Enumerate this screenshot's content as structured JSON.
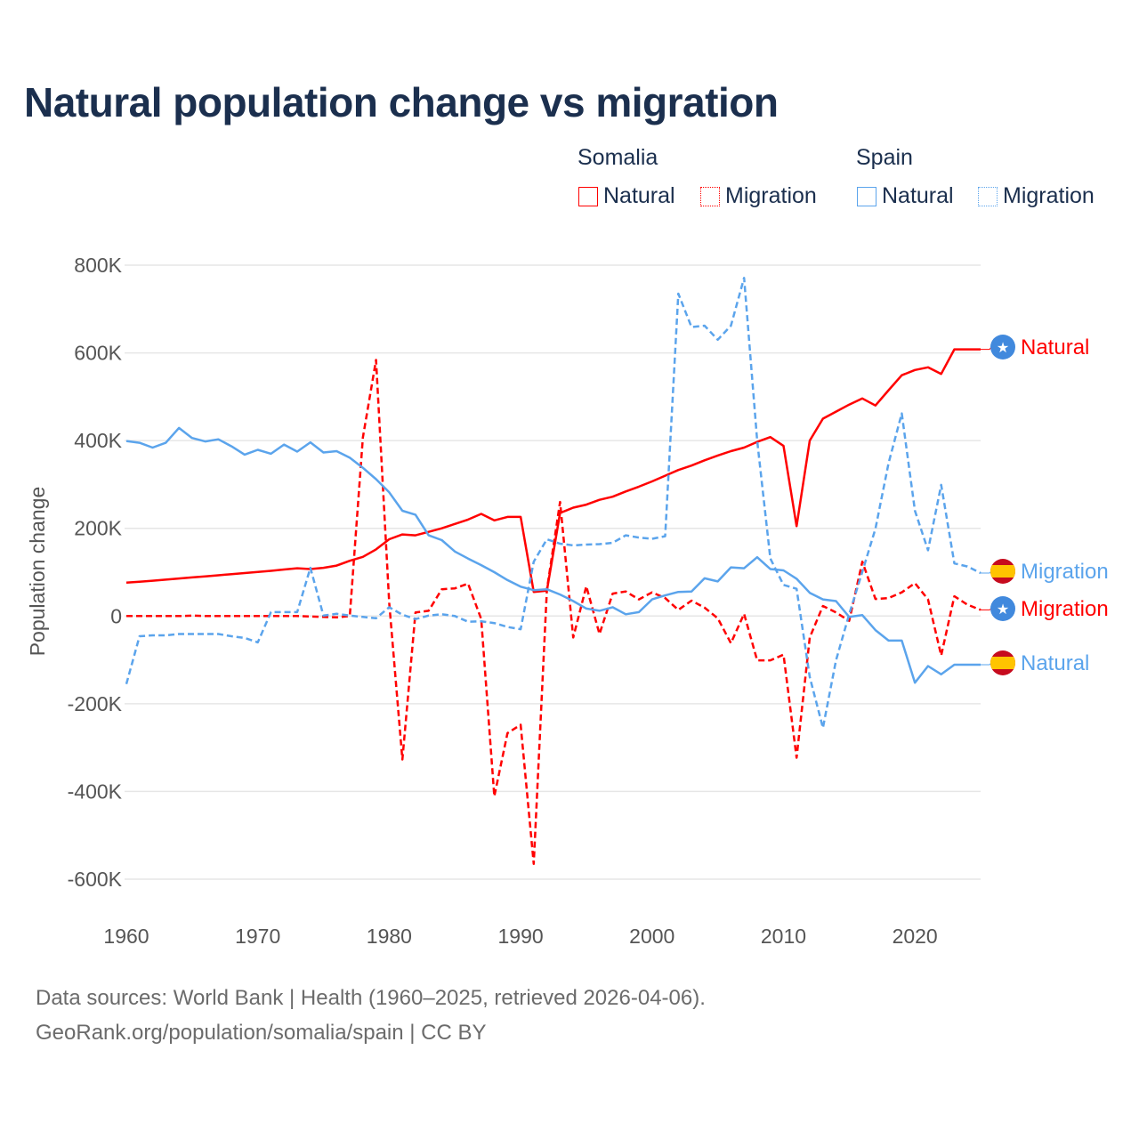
{
  "chart_data": {
    "type": "line",
    "title": "Natural population change vs migration",
    "xlabel": "",
    "ylabel": "Population change",
    "xlim": [
      1960,
      2025
    ],
    "ylim": [
      -600000,
      800000
    ],
    "x_ticks": [
      1960,
      1970,
      1980,
      1990,
      2000,
      2010,
      2020
    ],
    "x_tick_labels": [
      "1960",
      "1970",
      "1980",
      "1990",
      "2000",
      "2010",
      "2020"
    ],
    "y_ticks": [
      800000,
      600000,
      400000,
      200000,
      0,
      -200000,
      -400000,
      -600000
    ],
    "y_tick_labels": [
      "800K",
      "600K",
      "400K",
      "200K",
      "0",
      "-200K",
      "-400K",
      "-600K"
    ],
    "grid": true,
    "legend_placement": "top-right",
    "legend_groups": [
      {
        "country": "Somalia",
        "items": [
          "Natural",
          "Migration"
        ]
      },
      {
        "country": "Spain",
        "items": [
          "Natural",
          "Migration"
        ]
      }
    ],
    "x": [
      1960,
      1961,
      1962,
      1963,
      1964,
      1965,
      1966,
      1967,
      1968,
      1969,
      1970,
      1971,
      1972,
      1973,
      1974,
      1975,
      1976,
      1977,
      1978,
      1979,
      1980,
      1981,
      1982,
      1983,
      1984,
      1985,
      1986,
      1987,
      1988,
      1989,
      1990,
      1991,
      1992,
      1993,
      1994,
      1995,
      1996,
      1997,
      1998,
      1999,
      2000,
      2001,
      2002,
      2003,
      2004,
      2005,
      2006,
      2007,
      2008,
      2009,
      2010,
      2011,
      2012,
      2013,
      2014,
      2015,
      2016,
      2017,
      2018,
      2019,
      2020,
      2021,
      2022,
      2023,
      2024,
      2025
    ],
    "series": [
      {
        "name": "Natural",
        "country": "Somalia",
        "color": "#ff0000",
        "dash": false,
        "end_label": "Natural",
        "flag": "somalia-flag",
        "values": [
          76000,
          78000,
          80500,
          83000,
          85500,
          88000,
          90500,
          93000,
          95500,
          98000,
          100500,
          103000,
          106000,
          109000,
          107000,
          110000,
          115000,
          126000,
          135000,
          152000,
          175000,
          186000,
          184000,
          192000,
          200000,
          210000,
          220000,
          233000,
          218000,
          226000,
          226000,
          55000,
          58000,
          235000,
          247000,
          254000,
          265000,
          272000,
          284000,
          295000,
          307000,
          320000,
          333000,
          343000,
          355000,
          366000,
          376000,
          384000,
          397000,
          408000,
          388000,
          205000,
          400000,
          450000,
          466000,
          482000,
          496000,
          480000,
          515000,
          549000,
          561000,
          567000,
          552000,
          608000,
          608000,
          608000
        ]
      },
      {
        "name": "Migration",
        "country": "Somalia",
        "color": "#ff0000",
        "dash": true,
        "end_label": "Migration",
        "flag": "somalia-flag",
        "values": [
          0,
          0,
          0,
          0,
          0,
          1000,
          0,
          0,
          0,
          0,
          0,
          0,
          0,
          0,
          -1000,
          -2000,
          -3000,
          0,
          407000,
          584000,
          30000,
          -327000,
          8000,
          12000,
          61000,
          63000,
          74000,
          -7000,
          -411000,
          -267000,
          -248000,
          -565000,
          60000,
          260000,
          -49000,
          68000,
          -41000,
          51000,
          56000,
          38000,
          54000,
          41000,
          14000,
          35000,
          19000,
          -5000,
          -62000,
          5000,
          -101000,
          -101000,
          -88000,
          -323000,
          -49000,
          23000,
          8000,
          -11000,
          124000,
          39000,
          41000,
          54000,
          75000,
          38000,
          -90000,
          45000,
          26000,
          14000
        ]
      },
      {
        "name": "Natural",
        "country": "Spain",
        "color": "#5ba4ec",
        "dash": false,
        "end_label": "Natural",
        "flag": "spain-flag",
        "values": [
          399000,
          395000,
          384000,
          395000,
          429000,
          406000,
          398000,
          403000,
          387000,
          368000,
          379000,
          370000,
          391000,
          375000,
          396000,
          373000,
          376000,
          361000,
          338000,
          312000,
          282000,
          240000,
          231000,
          184000,
          173000,
          147000,
          131000,
          116000,
          100000,
          82000,
          67000,
          59000,
          61000,
          49000,
          34000,
          17000,
          12000,
          20000,
          4000,
          9000,
          38000,
          47000,
          55000,
          56000,
          86000,
          79000,
          111000,
          109000,
          134000,
          107000,
          104000,
          85000,
          53000,
          38000,
          34000,
          -2000,
          2000,
          -32000,
          -56000,
          -56000,
          -152000,
          -114000,
          -133000,
          -111000,
          -111000,
          -111000
        ]
      },
      {
        "name": "Migration",
        "country": "Spain",
        "color": "#5ba4ec",
        "dash": true,
        "end_label": "Migration",
        "flag": "spain-flag",
        "values": [
          -155000,
          -46000,
          -44000,
          -44000,
          -41000,
          -41000,
          -41000,
          -41000,
          -46000,
          -50000,
          -60000,
          9000,
          9000,
          9000,
          110000,
          1000,
          5000,
          1000,
          -2000,
          -5000,
          20000,
          3000,
          -7000,
          1000,
          4000,
          0,
          -13000,
          -12000,
          -16000,
          -25000,
          -30000,
          124000,
          175000,
          165000,
          161000,
          163000,
          164000,
          167000,
          184000,
          179000,
          176000,
          182000,
          735000,
          659000,
          662000,
          630000,
          662000,
          771000,
          400000,
          131000,
          71000,
          62000,
          -139000,
          -255000,
          -101000,
          4000,
          101000,
          199000,
          349000,
          462000,
          240000,
          150000,
          299000,
          120000,
          113000,
          98000
        ]
      }
    ]
  },
  "legend": {
    "somalia_label": "Somalia",
    "spain_label": "Spain",
    "natural": "Natural",
    "migration": "Migration"
  },
  "footer": {
    "line1": "Data sources: World Bank | Health (1960–2025, retrieved 2026-04-06).",
    "line2": "GeoRank.org/population/somalia/spain | CC BY"
  }
}
